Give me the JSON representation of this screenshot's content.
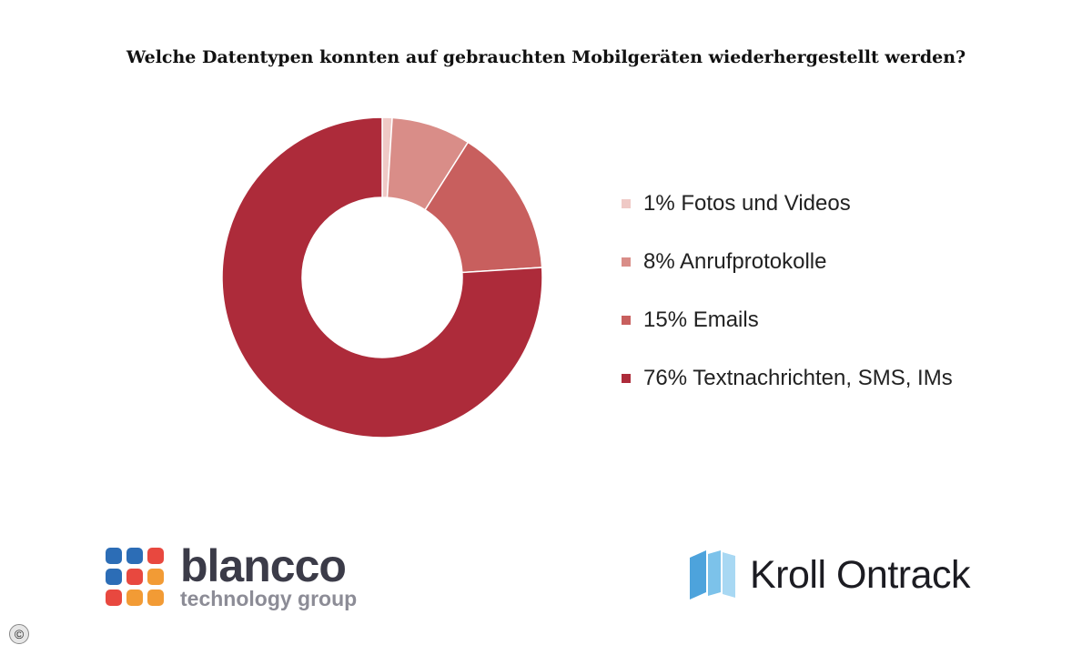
{
  "chart_data": {
    "type": "pie",
    "title": "Welche Datentypen konnten auf gebrauchten Mobilgeräten wiederhergestellt werden?",
    "slices": [
      {
        "label": "1% Fotos und Videos",
        "value": 1,
        "color": "#efc9c6"
      },
      {
        "label": "8% Anrufprotokolle",
        "value": 8,
        "color": "#d98d88"
      },
      {
        "label": "15% Emails",
        "value": 15,
        "color": "#c85f5e"
      },
      {
        "label": "76% Textnachrichten, SMS, IMs",
        "value": 76,
        "color": "#ad2b3a"
      }
    ],
    "legend": "right"
  },
  "logos": {
    "blancco": {
      "name": "blancco",
      "tagline": "technology group"
    },
    "kroll": {
      "name": "Kroll Ontrack",
      "icon": "book-icon"
    }
  },
  "copyright": "©",
  "colors": {
    "blancco_dots": [
      "#2c6db6",
      "#2c6db6",
      "#e8483f",
      "#2c6db6",
      "#e8483f",
      "#f29b35",
      "#e8483f",
      "#f29b35",
      "#f29b35"
    ]
  }
}
